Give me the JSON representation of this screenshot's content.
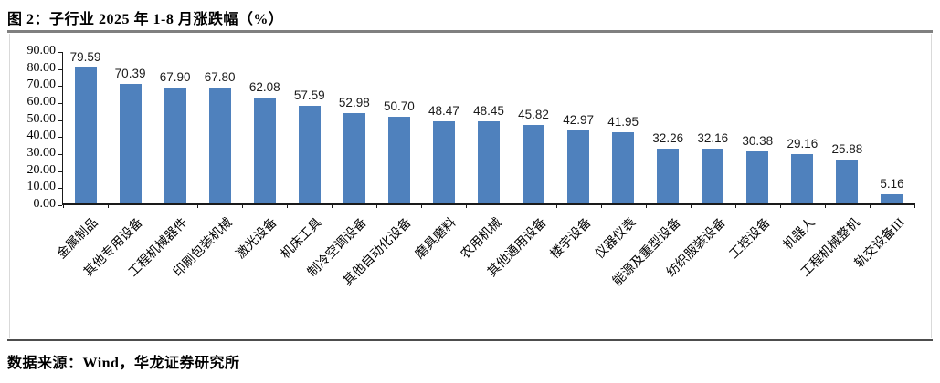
{
  "figure": {
    "title": "图 2：子行业 2025 年 1-8 月涨跌幅（%）",
    "source": "数据来源：Wind，华龙证券研究所"
  },
  "chart_data": {
    "type": "bar",
    "title": "子行业 2025 年 1-8 月涨跌幅（%）",
    "categories": [
      "金属制品",
      "其他专用设备",
      "工程机械器件",
      "印刷包装机械",
      "激光设备",
      "机床工具",
      "制冷空调设备",
      "其他自动化设备",
      "磨具磨料",
      "农用机械",
      "其他通用设备",
      "楼宇设备",
      "仪器仪表",
      "能源及重型设备",
      "纺织服装设备",
      "工控设备",
      "机器人",
      "工程机械整机",
      "轨交设备III"
    ],
    "values": [
      79.59,
      70.39,
      67.9,
      67.8,
      62.08,
      57.59,
      52.98,
      50.7,
      48.47,
      48.45,
      45.82,
      42.97,
      41.95,
      32.26,
      32.16,
      30.38,
      29.16,
      25.88,
      5.16
    ],
    "data_labels": [
      "79.59",
      "70.39",
      "67.90",
      "67.80",
      "62.08",
      "57.59",
      "52.98",
      "50.70",
      "48.47",
      "48.45",
      "45.82",
      "42.97",
      "41.95",
      "32.26",
      "32.16",
      "30.38",
      "29.16",
      "25.88",
      "5.16"
    ],
    "xlabel": "",
    "ylabel": "",
    "ylim": [
      0,
      90
    ],
    "ytick_labels": [
      "90.00",
      "80.00",
      "70.00",
      "60.00",
      "50.00",
      "40.00",
      "30.00",
      "20.00",
      "10.00",
      "0.00"
    ],
    "grid": false,
    "legend": false,
    "category_label_rotation_deg": 45
  },
  "colors": {
    "bar": "#4F81BD",
    "axis": "#1a1a1a",
    "title_rule": "#808080",
    "bottom_rule": "#4d4d4d",
    "frame_border": "#d9d9d9"
  }
}
